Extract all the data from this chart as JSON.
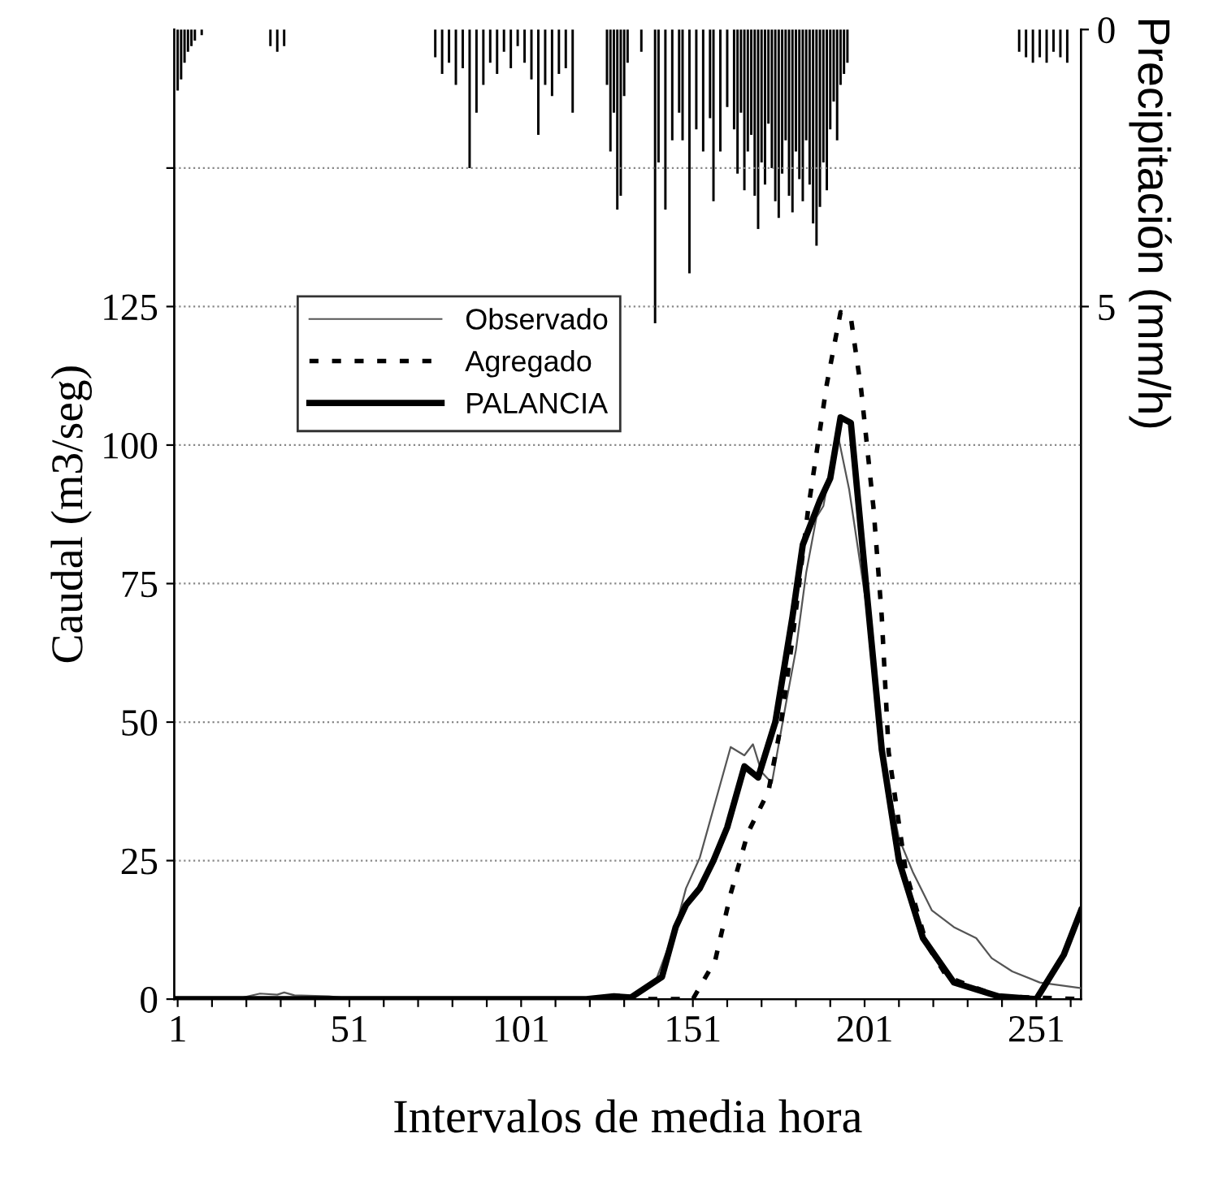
{
  "chart_data": {
    "type": "line",
    "xlabel": "Intervalos de media hora",
    "ylabel": "Caudal (m3/seg)",
    "y2label": "Precipitación (mm/h)",
    "xlim": [
      0,
      264
    ],
    "xticks": [
      1,
      {
        "value": 11,
        "label": null
      },
      {
        "value": 21,
        "label": null
      },
      {
        "value": 31,
        "label": null
      },
      {
        "value": 41,
        "label": null
      },
      51,
      {
        "value": 61,
        "label": null
      },
      {
        "value": 71,
        "label": null
      },
      {
        "value": 81,
        "label": null
      },
      {
        "value": 91,
        "label": null
      },
      101,
      {
        "value": 111,
        "label": null
      },
      {
        "value": 121,
        "label": null
      },
      {
        "value": 131,
        "label": null
      },
      {
        "value": 141,
        "label": null
      },
      151,
      {
        "value": 161,
        "label": null
      },
      {
        "value": 171,
        "label": null
      },
      {
        "value": 181,
        "label": null
      },
      {
        "value": 191,
        "label": null
      },
      201,
      {
        "value": 211,
        "label": null
      },
      {
        "value": 221,
        "label": null
      },
      {
        "value": 231,
        "label": null
      },
      {
        "value": 241,
        "label": null
      },
      251,
      {
        "value": 261,
        "label": null
      }
    ],
    "ylim": [
      0,
      175
    ],
    "yticks": [
      0,
      25,
      50,
      75,
      100,
      125,
      {
        "value": 150,
        "label": null
      }
    ],
    "y2lim": [
      17.5,
      0
    ],
    "y2ticks": [
      0,
      5
    ],
    "grid": "y",
    "legend": "top left",
    "series": [
      {
        "name": "Observado",
        "color": "#555555",
        "line_style": "solid",
        "x": [
          0,
          20,
          25,
          30,
          32,
          35,
          45,
          50,
          120,
          133,
          140,
          146,
          149,
          153,
          162,
          166,
          168.5,
          171,
          174,
          178,
          181,
          184,
          187,
          189,
          192,
          193.5,
          196.5,
          199,
          202,
          206,
          211,
          215,
          220.6,
          227,
          233.5,
          238,
          244,
          252,
          264
        ],
        "values": [
          0.3,
          0.3,
          1,
          0.8,
          1.2,
          0.7,
          0.5,
          0.2,
          0.3,
          0.5,
          3,
          13,
          20,
          25.5,
          45.5,
          44,
          46,
          41,
          39,
          53,
          63,
          77,
          87,
          89,
          99,
          101,
          92,
          81.6,
          69,
          44.5,
          29,
          23,
          16,
          13,
          11,
          7.4,
          5,
          3,
          2
        ]
      },
      {
        "name": "Agregado",
        "color": "#000000",
        "line_style": "dotted",
        "x": [
          0,
          151,
          157.5,
          162,
          167,
          173,
          176.5,
          180,
          184.6,
          190,
          194,
          197,
          200,
          203.6,
          206,
          208,
          213,
          219,
          225,
          240,
          264
        ],
        "values": [
          0,
          0,
          7,
          19,
          30,
          37.5,
          49,
          65,
          88.6,
          111,
          124,
          123,
          110,
          88.6,
          69,
          44.6,
          23,
          10,
          4,
          0.5,
          0
        ]
      },
      {
        "name": "PALANCIA",
        "color": "#000000",
        "line_style": "solid",
        "x": [
          0,
          120,
          128,
          133,
          142,
          146,
          149,
          153,
          157,
          161,
          166,
          170,
          175,
          180,
          183,
          188,
          191,
          194,
          197,
          202,
          206,
          211,
          218,
          227,
          240,
          251,
          259,
          264
        ],
        "values": [
          0,
          0,
          0.5,
          0.3,
          4,
          13,
          17,
          20,
          25,
          31,
          42,
          40,
          50,
          69,
          82,
          90,
          94,
          105,
          104,
          71,
          45,
          25,
          11,
          3,
          0.5,
          0,
          8,
          16
        ]
      },
      {
        "type": "bar",
        "axis": "y2",
        "color": "#000000",
        "x": [
          1,
          2,
          3,
          4,
          5,
          6,
          8,
          28,
          30,
          32,
          76,
          78,
          80,
          82,
          84,
          86,
          88,
          90,
          92,
          94,
          96,
          98,
          100,
          102,
          104,
          106,
          108,
          110,
          112,
          114,
          116,
          126,
          127,
          128,
          129,
          130,
          131,
          132,
          136,
          140,
          141,
          143,
          145,
          147,
          148,
          150,
          152,
          154,
          156,
          157,
          159,
          161,
          163,
          164,
          165,
          166,
          167,
          168,
          169,
          170,
          171,
          172,
          173,
          174,
          175,
          176,
          177,
          178,
          179,
          180,
          181,
          182,
          183,
          184,
          185,
          186,
          187,
          188,
          189,
          190,
          191,
          192,
          193,
          194,
          195,
          196,
          246,
          248,
          250,
          252,
          254,
          256,
          258,
          260
        ],
        "values": [
          1.1,
          0.9,
          0.6,
          0.4,
          0.3,
          0.2,
          0.1,
          0.3,
          0.4,
          0.3,
          0.5,
          0.8,
          0.6,
          1.0,
          0.7,
          2.5,
          1.5,
          1.0,
          0.6,
          0.8,
          0.4,
          0.7,
          0.3,
          0.6,
          0.9,
          1.9,
          1.0,
          1.2,
          0.8,
          0.7,
          1.5,
          1.0,
          2.2,
          1.5,
          3.25,
          3.0,
          1.2,
          0.6,
          0.4,
          5.3,
          2.4,
          3.25,
          2.0,
          1.5,
          2.0,
          4.4,
          1.8,
          2.2,
          1.6,
          3.1,
          2.2,
          1.4,
          1.8,
          2.6,
          1.5,
          2.9,
          2.2,
          1.9,
          3.0,
          3.6,
          2.4,
          2.8,
          1.7,
          2.5,
          3.1,
          3.4,
          2.6,
          2.0,
          3.0,
          3.3,
          2.2,
          2.7,
          3.1,
          2.0,
          2.8,
          3.5,
          3.9,
          3.2,
          2.4,
          2.9,
          1.8,
          1.3,
          2.0,
          1.0,
          0.8,
          0.6,
          0.4,
          0.5,
          0.6,
          0.5,
          0.6,
          0.4,
          0.5,
          0.6
        ]
      }
    ]
  }
}
